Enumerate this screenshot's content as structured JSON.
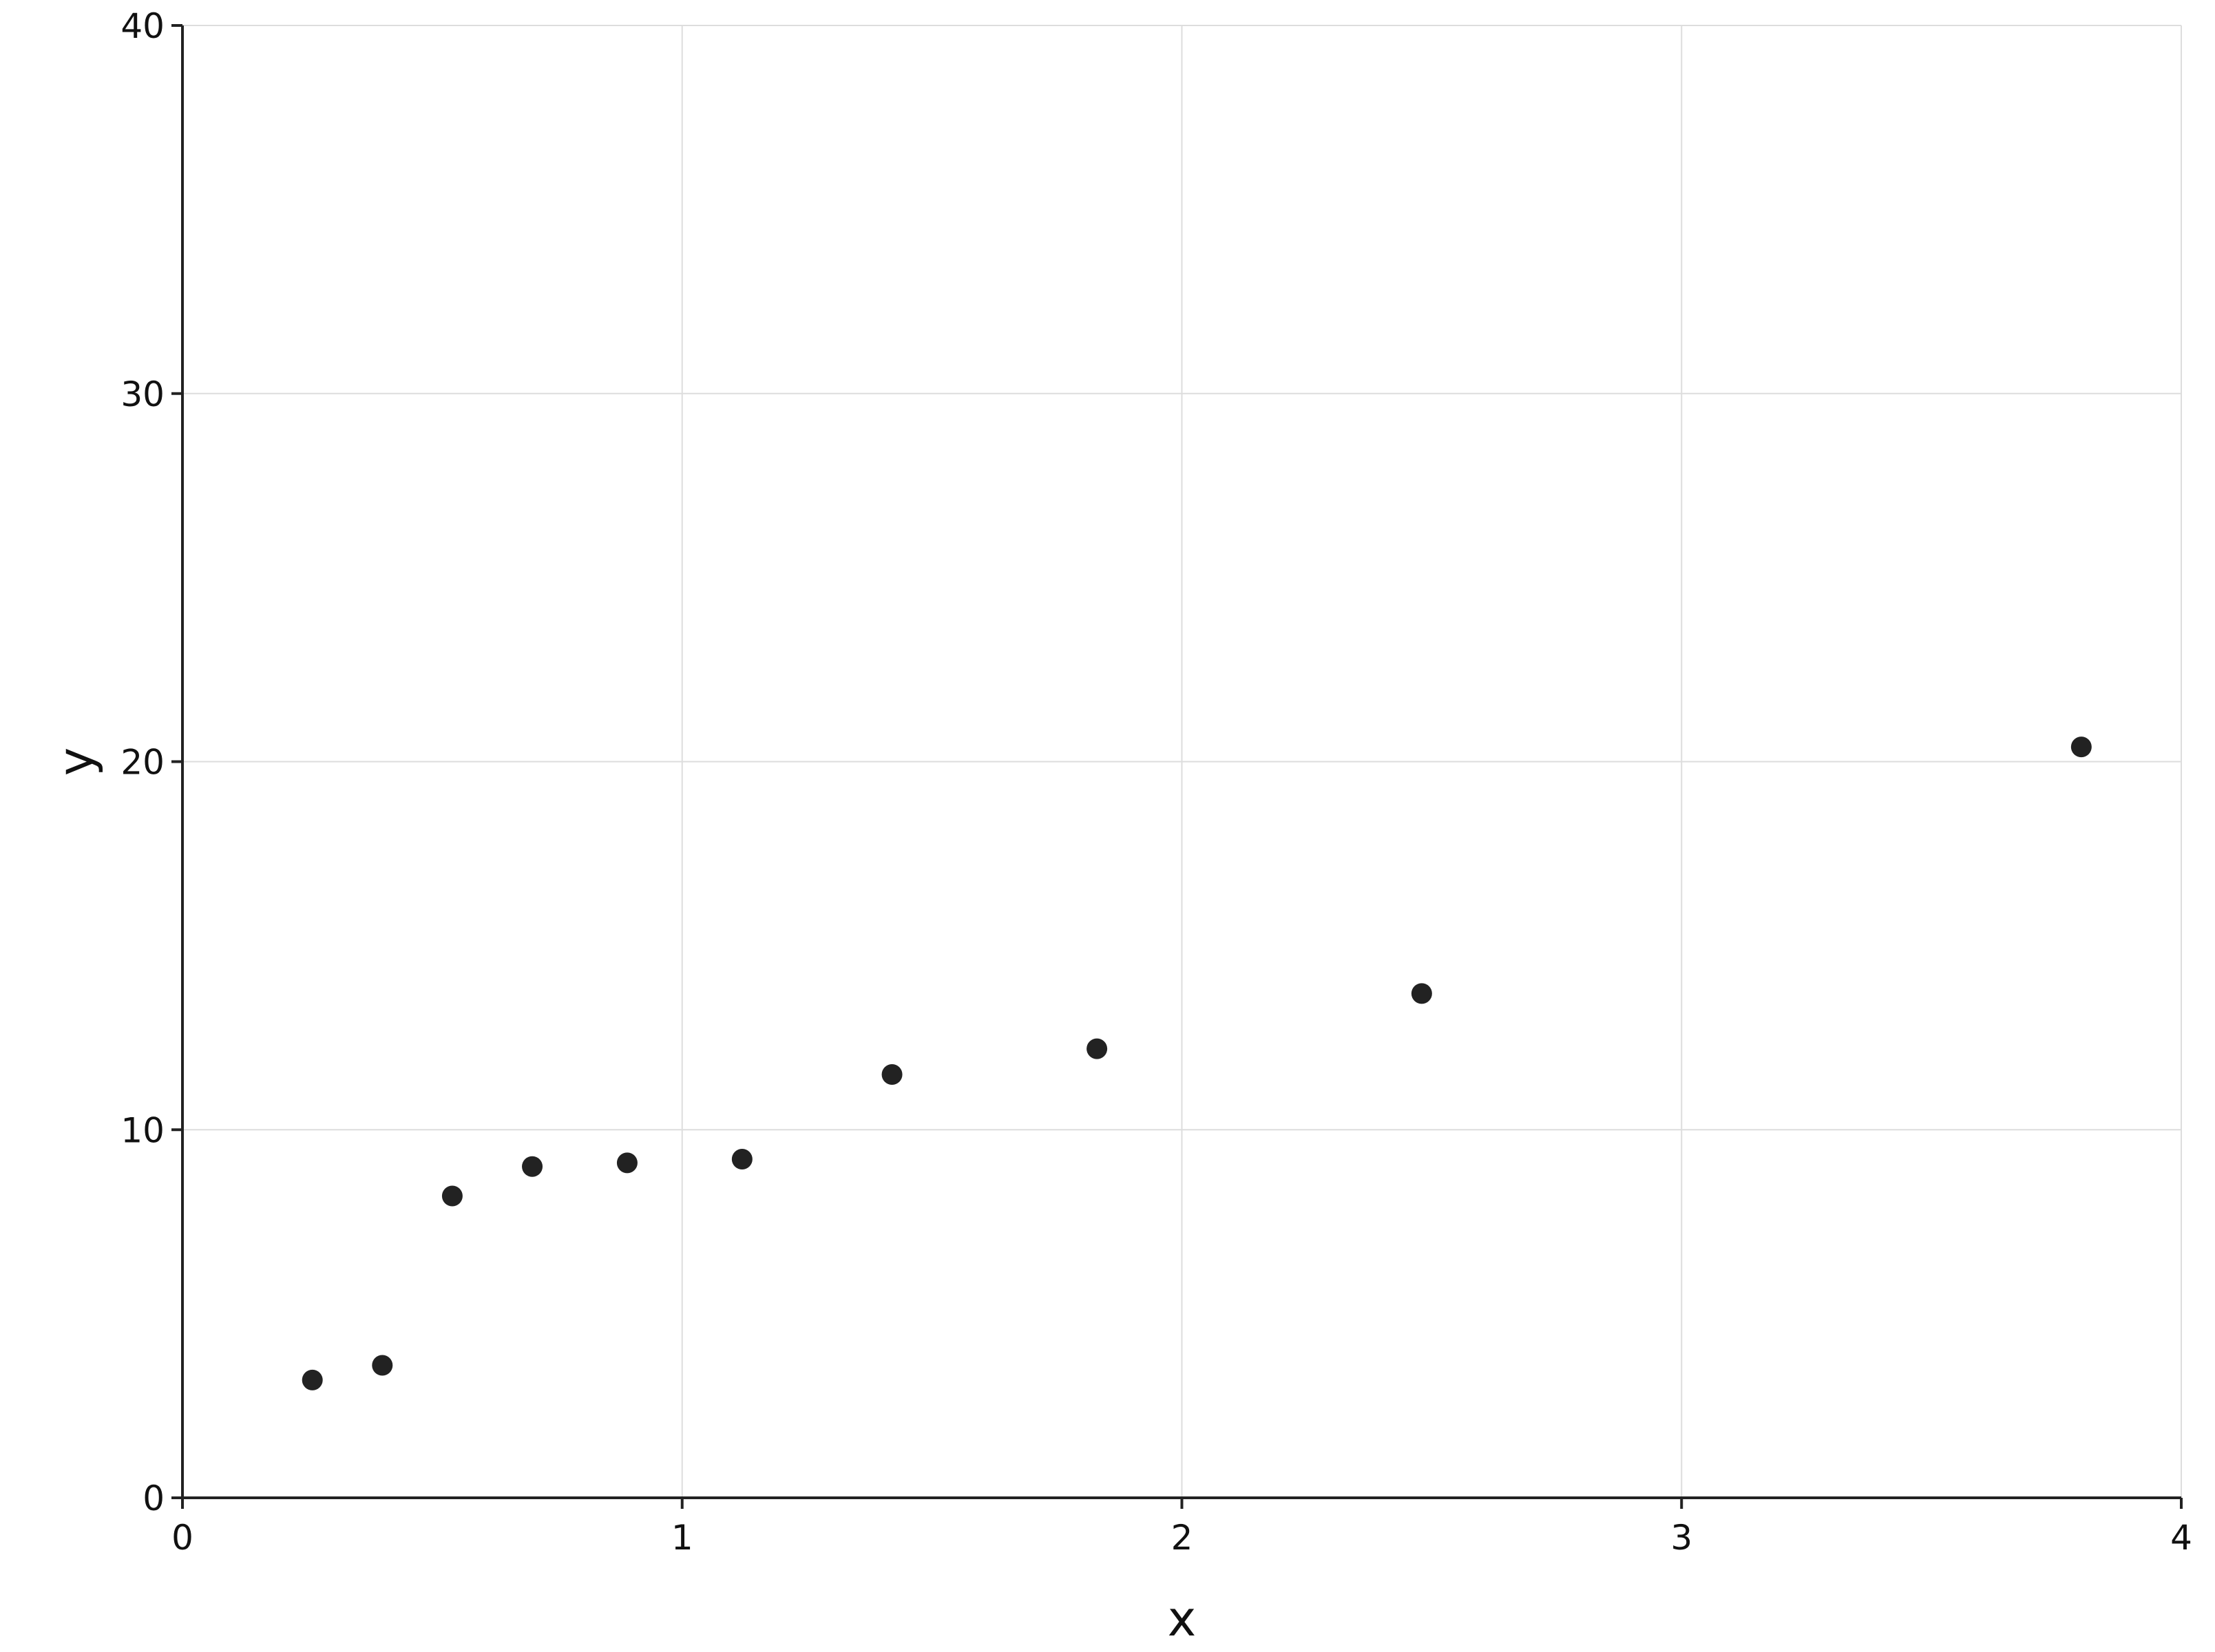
{
  "chart_data": {
    "type": "scatter",
    "title": "",
    "xlabel": "x",
    "ylabel": "y",
    "xlim": [
      0,
      4
    ],
    "ylim": [
      0,
      40
    ],
    "xticks": [
      "0",
      "1",
      "2",
      "3",
      "4"
    ],
    "yticks": [
      "0",
      "10",
      "20",
      "30",
      "40"
    ],
    "grid": true,
    "point_color": "#222222",
    "series": [
      {
        "points": [
          {
            "x": 0.26,
            "y": 3.2
          },
          {
            "x": 0.4,
            "y": 3.6
          },
          {
            "x": 0.54,
            "y": 8.2
          },
          {
            "x": 0.7,
            "y": 9.0
          },
          {
            "x": 0.89,
            "y": 9.1
          },
          {
            "x": 1.12,
            "y": 9.2
          },
          {
            "x": 1.42,
            "y": 11.5
          },
          {
            "x": 1.83,
            "y": 12.2
          },
          {
            "x": 2.48,
            "y": 13.7
          },
          {
            "x": 3.8,
            "y": 20.4
          }
        ]
      }
    ]
  }
}
